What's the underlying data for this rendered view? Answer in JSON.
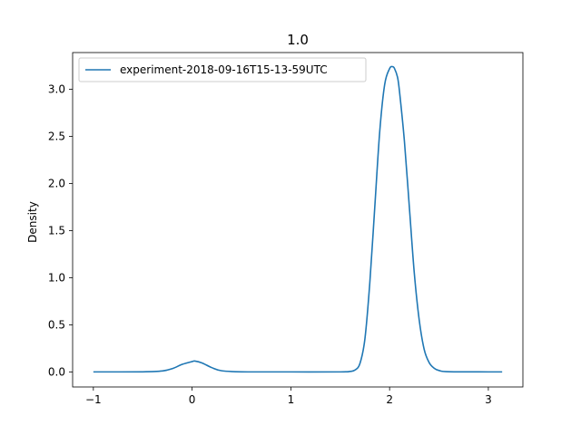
{
  "chart_data": {
    "type": "line",
    "title": "1.0",
    "xlabel": "",
    "ylabel": "Density",
    "xlim": [
      -1.21,
      3.35
    ],
    "ylim": [
      -0.16,
      3.39
    ],
    "xticks": [
      -1,
      0,
      1,
      2,
      3
    ],
    "xtick_labels": [
      "−1",
      "0",
      "1",
      "2",
      "3"
    ],
    "yticks": [
      0.0,
      0.5,
      1.0,
      1.5,
      2.0,
      2.5,
      3.0
    ],
    "ytick_labels": [
      "0.0",
      "0.5",
      "1.0",
      "1.5",
      "2.0",
      "2.5",
      "3.0"
    ],
    "grid": false,
    "legend_position": "top-left",
    "series": [
      {
        "name": "experiment-2018-09-16T15-13-59UTC",
        "color": "#1f77b4",
        "x": [
          -1.0,
          -0.5,
          -0.3,
          -0.2,
          -0.1,
          0.0,
          0.03,
          0.1,
          0.2,
          0.3,
          0.5,
          1.0,
          1.5,
          1.6,
          1.65,
          1.7,
          1.75,
          1.8,
          1.85,
          1.9,
          1.95,
          2.0,
          2.03,
          2.05,
          2.08,
          2.1,
          2.15,
          2.2,
          2.25,
          2.3,
          2.35,
          2.4,
          2.45,
          2.5,
          2.6,
          3.0,
          3.14
        ],
        "y": [
          0.0,
          0.001,
          0.01,
          0.035,
          0.08,
          0.11,
          0.115,
          0.095,
          0.045,
          0.012,
          0.001,
          0.0,
          0.0,
          0.005,
          0.02,
          0.09,
          0.35,
          0.95,
          1.75,
          2.55,
          3.05,
          3.22,
          3.24,
          3.22,
          3.13,
          2.98,
          2.45,
          1.75,
          1.05,
          0.55,
          0.24,
          0.1,
          0.04,
          0.015,
          0.002,
          0.0,
          0.0
        ]
      }
    ]
  }
}
